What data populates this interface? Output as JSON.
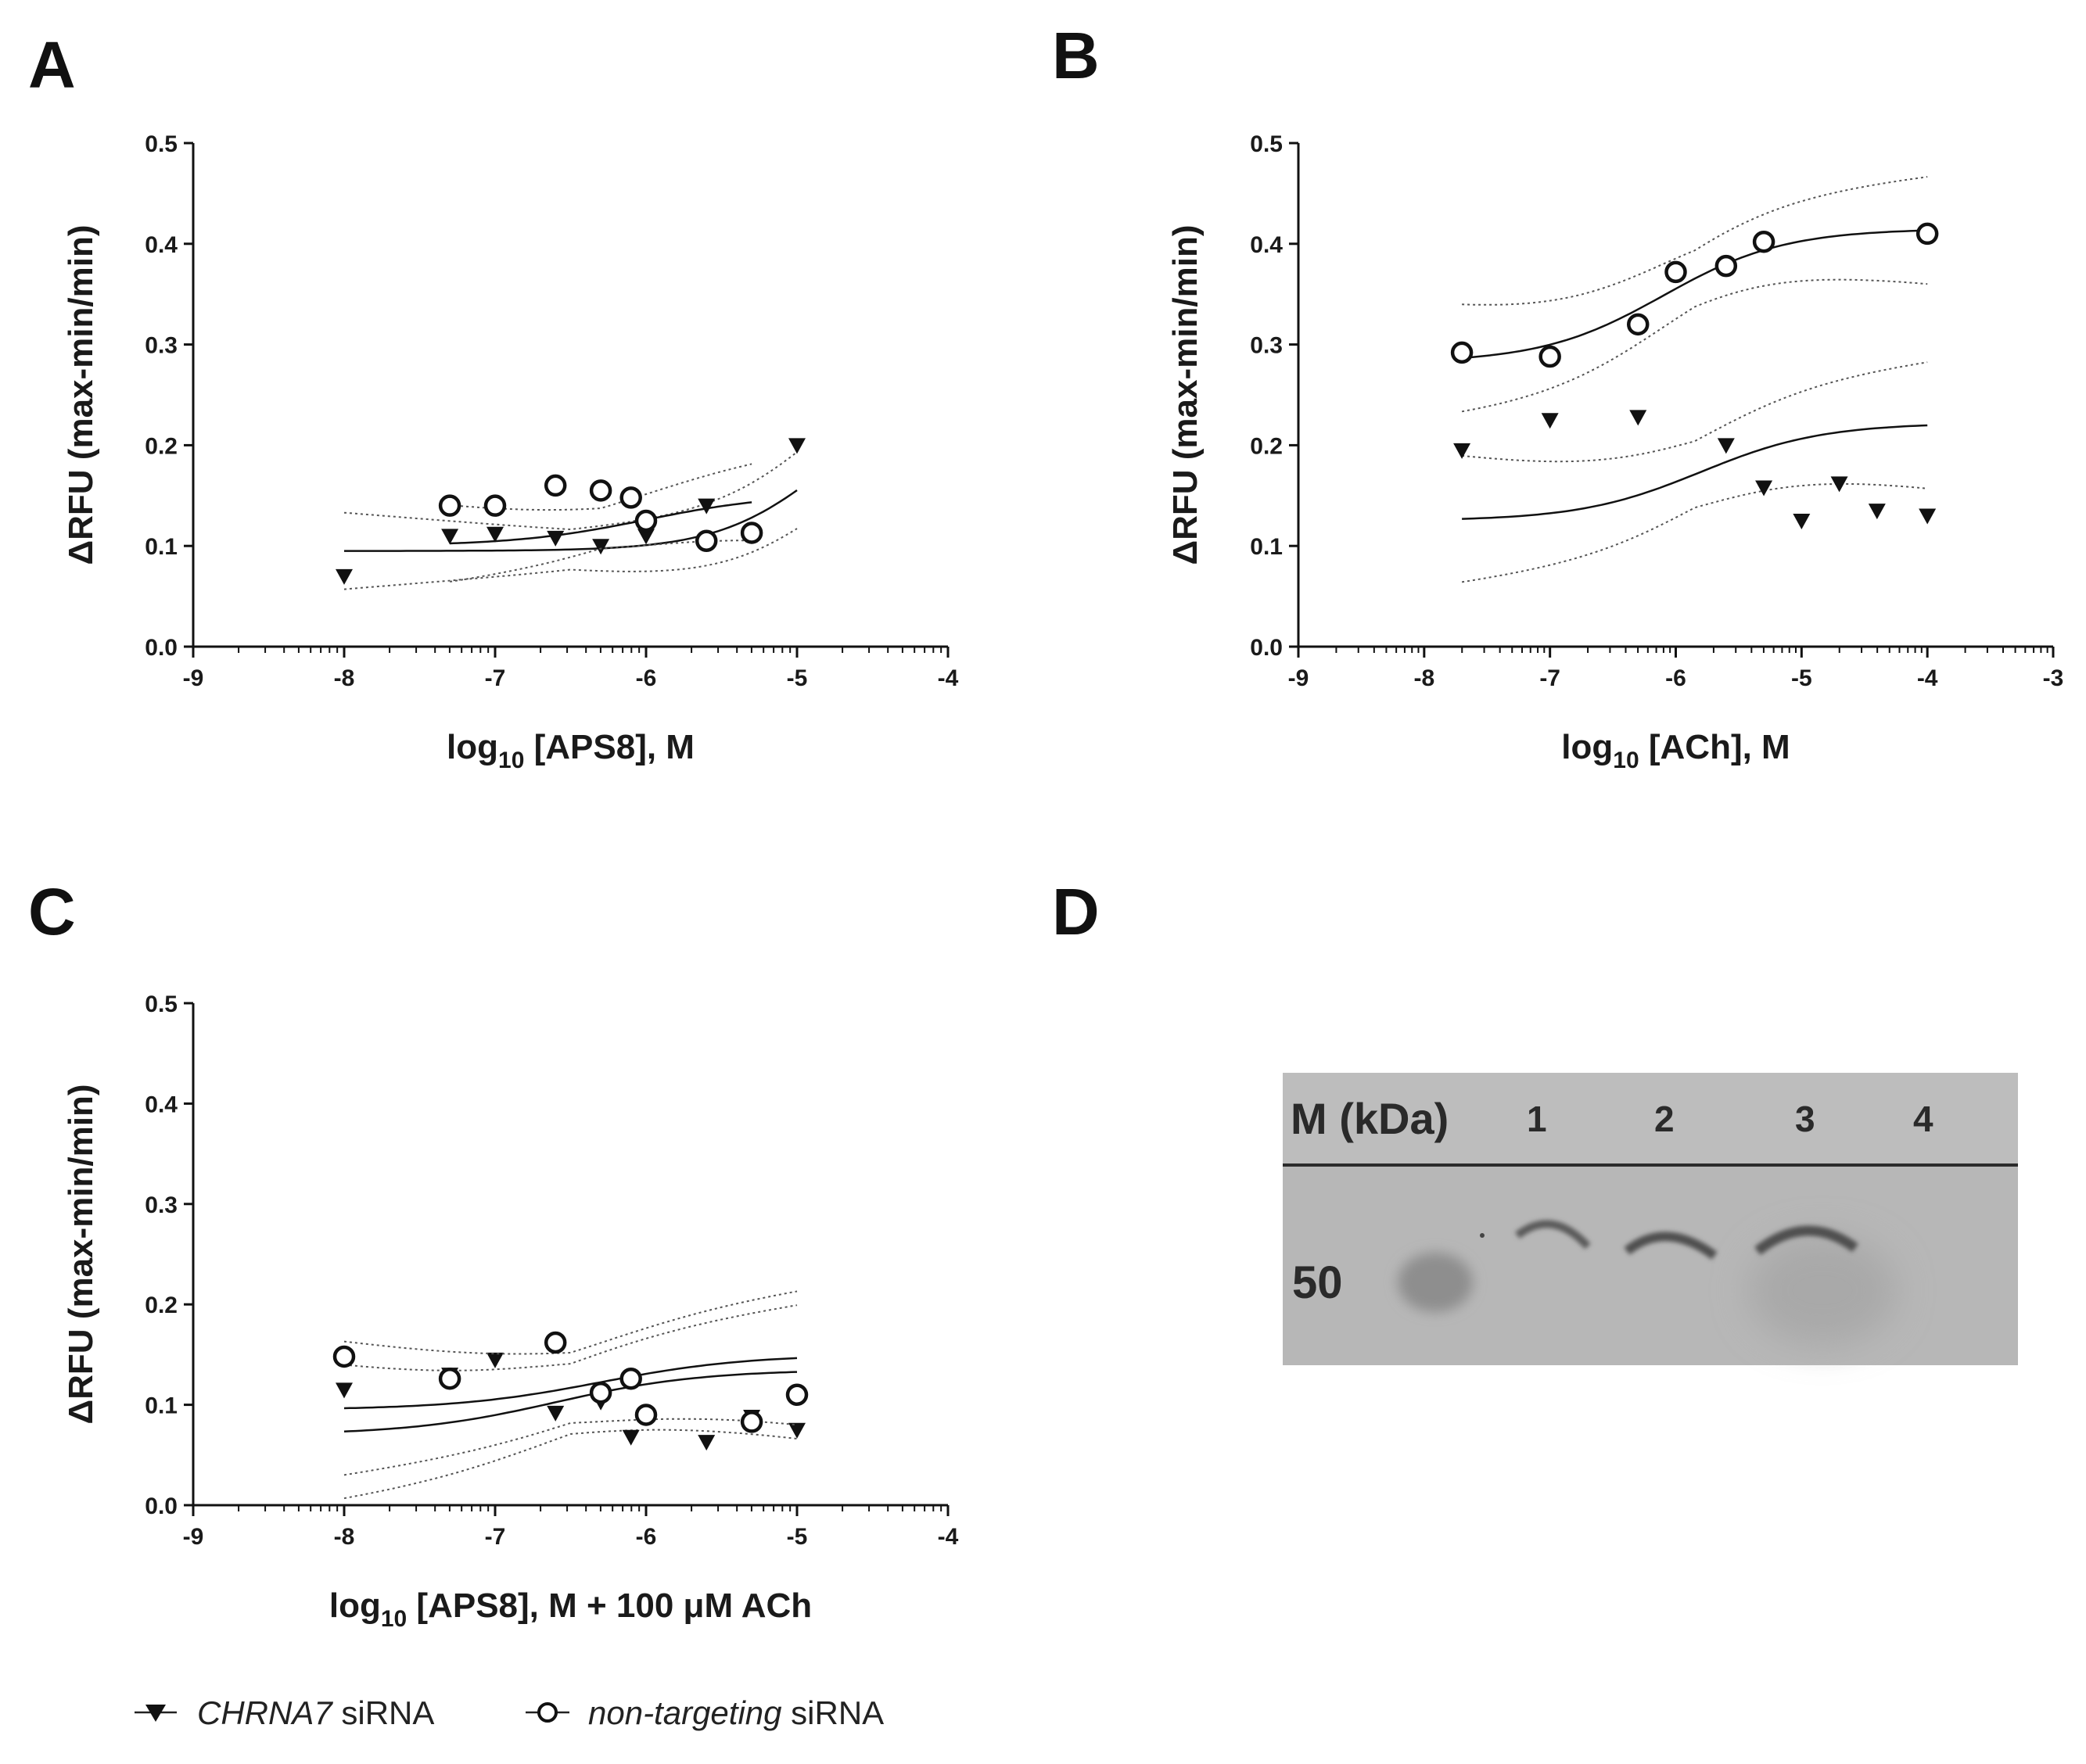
{
  "figure": {
    "panels": [
      "A",
      "B",
      "C",
      "D"
    ]
  },
  "legend": {
    "series": [
      {
        "name_italic": "CHRNA7",
        "name_rest": " siRNA",
        "marker": "triangle-down-filled"
      },
      {
        "name_italic": "non-targeting",
        "name_rest": " siRNA",
        "marker": "circle-open"
      }
    ]
  },
  "chart_data": [
    {
      "panel": "A",
      "type": "scatter",
      "ylabel": "ΔRFU (max-min/min)",
      "xlabel_parts": {
        "pre": "log",
        "sub": "10",
        "post": " [APS8], M"
      },
      "xlim": [
        -9,
        -4
      ],
      "ylim": [
        0,
        0.5
      ],
      "xticks": [
        "-9",
        "-8",
        "-7",
        "-6",
        "-5",
        "-4"
      ],
      "yticks": [
        "0.0",
        "0.1",
        "0.2",
        "0.3",
        "0.4",
        "0.5"
      ],
      "series": [
        {
          "name": "CHRNA7 siRNA",
          "marker": "triangle",
          "x": [
            -8,
            -7.3,
            -7,
            -6.6,
            -6.3,
            -6,
            -5.6,
            -5
          ],
          "y": [
            0.07,
            0.11,
            0.112,
            0.108,
            0.1,
            0.11,
            0.14,
            0.2
          ],
          "fit": {
            "bottom": 0.095,
            "top": 0.26,
            "logEC50": -4.8,
            "hill": 1.2,
            "x0": -8,
            "x1": -5
          },
          "ci_offset": 0.02
        },
        {
          "name": "non-targeting siRNA",
          "marker": "circle",
          "x": [
            -7.3,
            -7,
            -6.6,
            -6.3,
            -6.1,
            -6,
            -5.6,
            -5.3
          ],
          "y": [
            0.14,
            0.14,
            0.16,
            0.155,
            0.148,
            0.125,
            0.105,
            0.113
          ],
          "fit": {
            "bottom": 0.1,
            "top": 0.152,
            "logEC50": -6.0,
            "hill": 1.0,
            "x0": -7.3,
            "x1": -5.3
          },
          "ci_offset": 0.02
        }
      ]
    },
    {
      "panel": "B",
      "type": "scatter",
      "ylabel": "ΔRFU (max-min/min)",
      "xlabel_parts": {
        "pre": "log",
        "sub": "10",
        "post": " [ACh], M"
      },
      "xlim": [
        -9,
        -3
      ],
      "ylim": [
        0,
        0.5
      ],
      "xticks": [
        "-9",
        "-8",
        "-7",
        "-6",
        "-5",
        "-4",
        "-3"
      ],
      "yticks": [
        "0.0",
        "0.1",
        "0.2",
        "0.3",
        "0.4",
        "0.5"
      ],
      "series": [
        {
          "name": "CHRNA7 siRNA",
          "marker": "triangle",
          "x": [
            -7.7,
            -7,
            -6.3,
            -5.6,
            -5.3,
            -5,
            -4.7,
            -4.4,
            -4
          ],
          "y": [
            0.195,
            0.225,
            0.228,
            0.2,
            0.158,
            0.125,
            0.162,
            0.135,
            0.13
          ],
          "fit": {
            "bottom": 0.125,
            "top": 0.222,
            "logEC50": -5.8,
            "hill": 0.9,
            "x0": -7.7,
            "x1": -4
          },
          "ci_offset": 0.033
        },
        {
          "name": "non-targeting siRNA",
          "marker": "circle",
          "x": [
            -7.7,
            -7,
            -6.3,
            -6,
            -5.6,
            -5.3,
            -4
          ],
          "y": [
            0.292,
            0.288,
            0.32,
            0.372,
            0.378,
            0.402,
            0.41
          ],
          "fit": {
            "bottom": 0.282,
            "top": 0.415,
            "logEC50": -6.1,
            "hill": 0.9,
            "x0": -7.7,
            "x1": -4
          },
          "ci_offset": 0.028
        }
      ]
    },
    {
      "panel": "C",
      "type": "scatter",
      "ylabel": "ΔRFU (max-min/min)",
      "xlabel_parts": {
        "pre": "log",
        "sub": "10",
        "post": " [APS8], M + 100 μM ACh"
      },
      "xlim": [
        -9,
        -4
      ],
      "ylim": [
        0,
        0.5
      ],
      "xticks": [
        "-9",
        "-8",
        "-7",
        "-6",
        "-5",
        "-4"
      ],
      "yticks": [
        "0.0",
        "0.1",
        "0.2",
        "0.3",
        "0.4",
        "0.5"
      ],
      "series": [
        {
          "name": "CHRNA7 siRNA",
          "marker": "triangle",
          "x": [
            -8,
            -7.3,
            -7,
            -6.6,
            -6.3,
            -6.1,
            -5.6,
            -5.3,
            -5
          ],
          "y": [
            0.115,
            0.13,
            0.145,
            0.092,
            0.103,
            0.068,
            0.063,
            0.088,
            0.075
          ],
          "fit": {
            "bottom": 0.07,
            "top": 0.135,
            "logEC50": -6.6,
            "hill": 0.9,
            "x0": -8,
            "x1": -5
          },
          "ci_offset": 0.035
        },
        {
          "name": "non-targeting siRNA",
          "marker": "circle",
          "x": [
            -8,
            -7.3,
            -6.6,
            -6.3,
            -6.1,
            -6,
            -5.3,
            -5
          ],
          "y": [
            0.148,
            0.126,
            0.162,
            0.112,
            0.126,
            0.09,
            0.083,
            0.11
          ],
          "fit": {
            "bottom": 0.095,
            "top": 0.15,
            "logEC50": -6.3,
            "hill": 0.9,
            "x0": -8,
            "x1": -5
          },
          "ci_offset": 0.035
        }
      ]
    }
  ],
  "blot": {
    "header_marker": "M (kDa)",
    "lanes": [
      "1",
      "2",
      "3",
      "4"
    ],
    "marker_value": "50"
  }
}
